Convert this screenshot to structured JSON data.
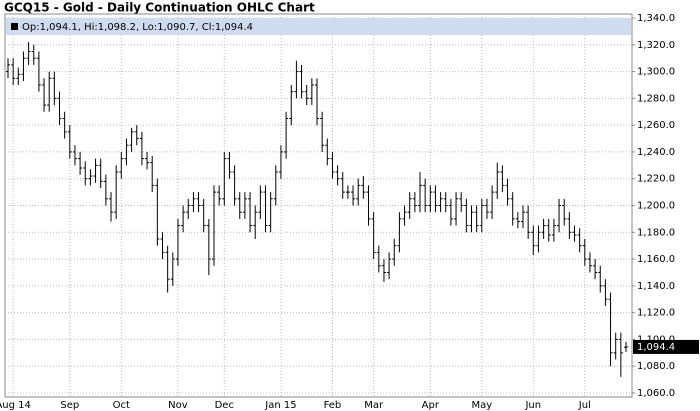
{
  "chart_data": {
    "type": "ohlc",
    "title": "GCQ15 - Gold - Daily Continuation OHLC Chart",
    "legend_text": "Op:1,094.1, Hi:1,098.2, Lo:1,090.7, Cl:1,094.4",
    "last_label": "1,094.4",
    "color": "#000000",
    "grid": true,
    "ylim": [
      1057,
      1343
    ],
    "yticks": [
      {
        "value": 1060,
        "label": "1,060.0"
      },
      {
        "value": 1080,
        "label": "1,080.0"
      },
      {
        "value": 1100,
        "label": "1,100.0"
      },
      {
        "value": 1120,
        "label": "1,120.0"
      },
      {
        "value": 1140,
        "label": "1,140.0"
      },
      {
        "value": 1160,
        "label": "1,160.0"
      },
      {
        "value": 1180,
        "label": "1,180.0"
      },
      {
        "value": 1200,
        "label": "1,200.0"
      },
      {
        "value": 1220,
        "label": "1,220.0"
      },
      {
        "value": 1240,
        "label": "1,240.0"
      },
      {
        "value": 1260,
        "label": "1,260.0"
      },
      {
        "value": 1280,
        "label": "1,280.0"
      },
      {
        "value": 1300,
        "label": "1,300.0"
      },
      {
        "value": 1320,
        "label": "1,320.0"
      },
      {
        "value": 1340,
        "label": "1,340.0"
      }
    ],
    "categories": [
      null,
      "Aug 14",
      null,
      null,
      null,
      null,
      null,
      null,
      null,
      null,
      null,
      null,
      "Sep",
      null,
      null,
      null,
      null,
      null,
      null,
      null,
      null,
      null,
      "Oct",
      null,
      null,
      null,
      null,
      null,
      null,
      null,
      null,
      null,
      null,
      "Nov",
      null,
      null,
      null,
      null,
      null,
      null,
      null,
      null,
      "Dec",
      null,
      null,
      null,
      null,
      null,
      null,
      null,
      null,
      null,
      null,
      "Jan 15",
      null,
      null,
      null,
      null,
      null,
      null,
      null,
      null,
      null,
      "Feb",
      null,
      null,
      null,
      null,
      null,
      null,
      null,
      "Mar",
      null,
      null,
      null,
      null,
      null,
      null,
      null,
      null,
      null,
      null,
      "Apr",
      null,
      null,
      null,
      null,
      null,
      null,
      null,
      null,
      null,
      "May",
      null,
      null,
      null,
      null,
      null,
      null,
      null,
      null,
      null,
      "Jun",
      null,
      null,
      null,
      null,
      null,
      null,
      null,
      null,
      null,
      "Jul",
      null,
      null,
      null,
      null,
      null,
      null,
      null,
      null
    ],
    "open": [
      1300,
      1305,
      1295,
      1298,
      1310,
      1315,
      1310,
      1290,
      1275,
      1295,
      1280,
      1265,
      1255,
      1240,
      1235,
      1228,
      1220,
      1222,
      1230,
      1218,
      1205,
      1195,
      1225,
      1235,
      1245,
      1255,
      1250,
      1235,
      1232,
      1215,
      1175,
      1165,
      1145,
      1160,
      1185,
      1195,
      1200,
      1205,
      1200,
      1185,
      1160,
      1210,
      1205,
      1235,
      1225,
      1205,
      1195,
      1205,
      1185,
      1195,
      1210,
      1185,
      1205,
      1225,
      1240,
      1265,
      1285,
      1300,
      1285,
      1280,
      1290,
      1265,
      1245,
      1235,
      1225,
      1220,
      1210,
      1210,
      1205,
      1215,
      1210,
      1190,
      1165,
      1155,
      1150,
      1160,
      1170,
      1190,
      1195,
      1205,
      1200,
      1215,
      1200,
      1210,
      1200,
      1205,
      1200,
      1190,
      1205,
      1200,
      1185,
      1195,
      1185,
      1200,
      1195,
      1210,
      1225,
      1215,
      1205,
      1190,
      1188,
      1195,
      1180,
      1170,
      1180,
      1185,
      1178,
      1185,
      1200,
      1190,
      1180,
      1178,
      1170,
      1160,
      1155,
      1150,
      1140,
      1130,
      1090,
      1100,
      1094.1
    ],
    "high": [
      1310,
      1310,
      1303,
      1315,
      1322,
      1320,
      1315,
      1295,
      1300,
      1300,
      1285,
      1270,
      1260,
      1245,
      1240,
      1233,
      1227,
      1235,
      1235,
      1223,
      1210,
      1230,
      1240,
      1250,
      1258,
      1260,
      1255,
      1240,
      1237,
      1220,
      1180,
      1170,
      1165,
      1190,
      1200,
      1205,
      1210,
      1210,
      1205,
      1190,
      1215,
      1215,
      1240,
      1240,
      1230,
      1210,
      1210,
      1210,
      1200,
      1215,
      1215,
      1210,
      1230,
      1245,
      1270,
      1290,
      1308,
      1305,
      1290,
      1295,
      1295,
      1270,
      1250,
      1240,
      1230,
      1225,
      1215,
      1215,
      1220,
      1222,
      1215,
      1195,
      1170,
      1160,
      1165,
      1175,
      1195,
      1200,
      1210,
      1210,
      1225,
      1220,
      1215,
      1215,
      1210,
      1210,
      1205,
      1210,
      1210,
      1205,
      1200,
      1200,
      1205,
      1205,
      1215,
      1232,
      1230,
      1220,
      1210,
      1195,
      1200,
      1200,
      1185,
      1185,
      1190,
      1190,
      1190,
      1205,
      1205,
      1195,
      1185,
      1183,
      1175,
      1165,
      1160,
      1155,
      1145,
      1135,
      1105,
      1105,
      1098.2
    ],
    "low": [
      1295,
      1290,
      1290,
      1293,
      1305,
      1305,
      1285,
      1270,
      1270,
      1275,
      1260,
      1250,
      1235,
      1230,
      1223,
      1215,
      1215,
      1217,
      1213,
      1200,
      1188,
      1190,
      1220,
      1230,
      1240,
      1245,
      1230,
      1227,
      1210,
      1170,
      1160,
      1135,
      1140,
      1155,
      1180,
      1190,
      1195,
      1195,
      1180,
      1148,
      1155,
      1200,
      1200,
      1220,
      1200,
      1190,
      1190,
      1180,
      1175,
      1190,
      1180,
      1180,
      1200,
      1220,
      1235,
      1260,
      1280,
      1280,
      1275,
      1275,
      1260,
      1240,
      1230,
      1220,
      1215,
      1205,
      1205,
      1200,
      1200,
      1205,
      1185,
      1160,
      1150,
      1143,
      1145,
      1155,
      1165,
      1185,
      1190,
      1195,
      1195,
      1195,
      1195,
      1195,
      1195,
      1195,
      1185,
      1185,
      1195,
      1180,
      1180,
      1180,
      1180,
      1190,
      1190,
      1205,
      1210,
      1200,
      1185,
      1183,
      1183,
      1175,
      1163,
      1165,
      1175,
      1173,
      1173,
      1180,
      1185,
      1175,
      1173,
      1165,
      1155,
      1150,
      1145,
      1135,
      1125,
      1080,
      1085,
      1072,
      1090.7
    ],
    "close": [
      1305,
      1295,
      1298,
      1310,
      1315,
      1310,
      1290,
      1275,
      1295,
      1280,
      1265,
      1255,
      1240,
      1235,
      1228,
      1220,
      1222,
      1230,
      1218,
      1205,
      1195,
      1225,
      1235,
      1245,
      1255,
      1250,
      1235,
      1232,
      1215,
      1175,
      1165,
      1145,
      1160,
      1185,
      1195,
      1200,
      1205,
      1200,
      1185,
      1160,
      1210,
      1205,
      1235,
      1225,
      1205,
      1195,
      1205,
      1185,
      1195,
      1210,
      1185,
      1205,
      1225,
      1240,
      1265,
      1285,
      1300,
      1285,
      1280,
      1290,
      1265,
      1245,
      1235,
      1225,
      1220,
      1210,
      1210,
      1205,
      1215,
      1210,
      1190,
      1165,
      1155,
      1150,
      1160,
      1170,
      1190,
      1195,
      1205,
      1200,
      1215,
      1200,
      1210,
      1200,
      1205,
      1200,
      1190,
      1205,
      1200,
      1185,
      1195,
      1185,
      1200,
      1195,
      1210,
      1225,
      1215,
      1205,
      1190,
      1188,
      1195,
      1180,
      1170,
      1180,
      1185,
      1178,
      1185,
      1200,
      1190,
      1180,
      1178,
      1170,
      1160,
      1155,
      1150,
      1140,
      1130,
      1090,
      1100,
      1090,
      1094.4
    ]
  }
}
